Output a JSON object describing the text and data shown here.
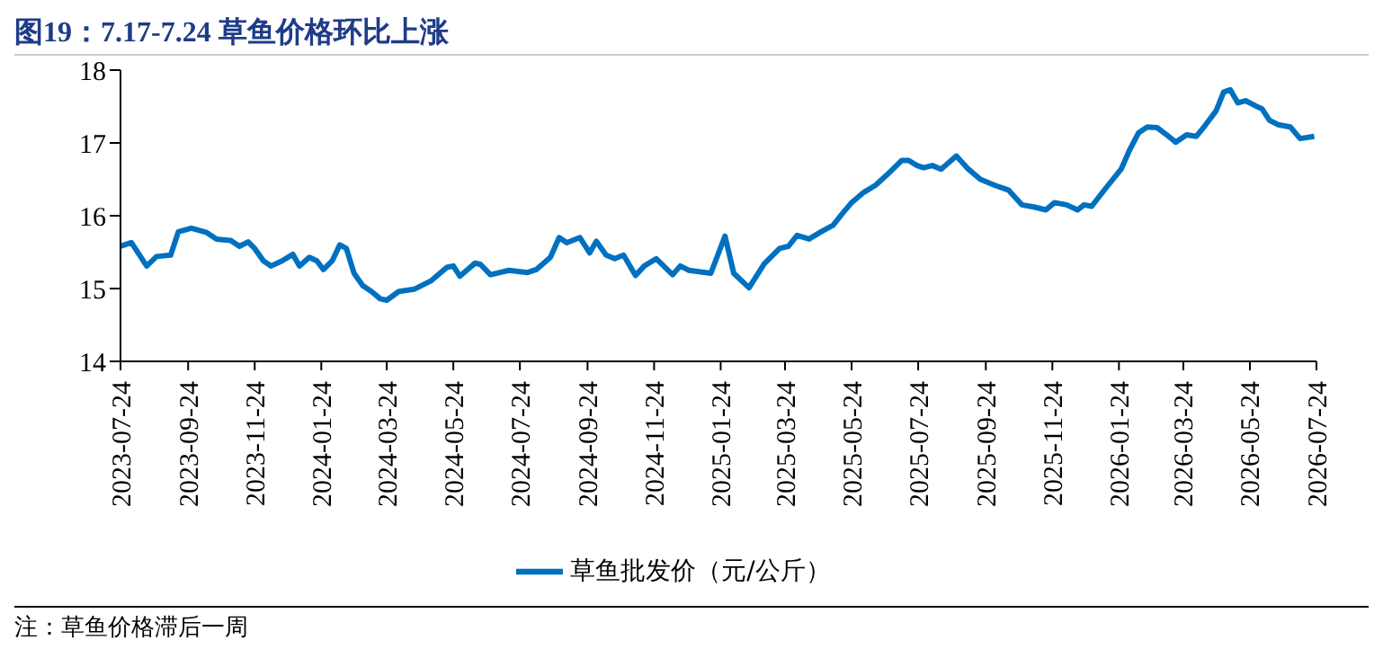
{
  "chart_data": {
    "type": "line",
    "title": "图19：7.17-7.24 草鱼价格环比上涨",
    "annotations": [
      "注：草鱼价格滞后一周"
    ],
    "x": [
      "2023-07-24",
      "2023-08-03",
      "2023-08-17",
      "2023-08-26",
      "2023-09-08",
      "2023-09-15",
      "2023-09-27",
      "2023-10-11",
      "2023-10-20",
      "2023-11-02",
      "2023-11-10",
      "2023-11-18",
      "2023-11-24",
      "2023-12-02",
      "2023-12-09",
      "2023-12-19",
      "2023-12-29",
      "2024-01-04",
      "2024-01-13",
      "2024-01-20",
      "2024-01-26",
      "2024-02-03",
      "2024-02-10",
      "2024-02-16",
      "2024-02-23",
      "2024-03-02",
      "2024-03-10",
      "2024-03-18",
      "2024-03-24",
      "2024-04-04",
      "2024-04-18",
      "2024-05-04",
      "2024-05-18",
      "2024-05-24",
      "2024-05-30",
      "2024-06-06",
      "2024-06-13",
      "2024-06-18",
      "2024-06-27",
      "2024-07-14",
      "2024-07-31",
      "2024-08-08",
      "2024-08-21",
      "2024-08-29",
      "2024-09-05",
      "2024-09-17",
      "2024-09-26",
      "2024-10-02",
      "2024-10-11",
      "2024-10-19",
      "2024-10-27",
      "2024-11-07",
      "2024-11-15",
      "2024-11-26",
      "2024-12-11",
      "2024-12-18",
      "2024-12-26",
      "2025-01-15",
      "2025-01-28",
      "2025-02-05",
      "2025-02-19",
      "2025-03-05",
      "2025-03-19",
      "2025-03-27",
      "2025-04-04",
      "2025-04-15",
      "2025-04-26",
      "2025-05-07",
      "2025-05-15",
      "2025-05-24",
      "2025-06-04",
      "2025-06-15",
      "2025-06-26",
      "2025-07-09",
      "2025-07-15",
      "2025-07-23",
      "2025-07-29",
      "2025-08-06",
      "2025-08-14",
      "2025-08-28",
      "2025-09-08",
      "2025-09-19",
      "2025-10-02",
      "2025-10-15",
      "2025-10-27",
      "2025-11-07",
      "2025-11-18",
      "2025-11-26",
      "2025-12-07",
      "2025-12-17",
      "2025-12-23",
      "2025-12-30",
      "2026-01-12",
      "2026-01-26",
      "2026-02-03",
      "2026-02-11",
      "2026-02-19",
      "2026-02-28",
      "2026-03-08",
      "2026-03-17",
      "2026-03-27",
      "2026-04-05",
      "2026-04-13",
      "2026-04-23",
      "2026-04-30",
      "2026-05-06",
      "2026-05-13",
      "2026-05-20",
      "2026-05-29",
      "2026-06-04",
      "2026-06-11",
      "2026-06-19",
      "2026-06-30",
      "2026-07-09",
      "2026-07-22"
    ],
    "series": [
      {
        "name": "草鱼批发价（元/公斤）",
        "color": "#0070c0",
        "values": [
          15.58,
          15.63,
          15.31,
          15.44,
          15.46,
          15.78,
          15.83,
          15.77,
          15.68,
          15.66,
          15.58,
          15.64,
          15.55,
          15.38,
          15.31,
          15.38,
          15.47,
          15.31,
          15.43,
          15.38,
          15.26,
          15.38,
          15.6,
          15.55,
          15.21,
          15.04,
          14.96,
          14.86,
          14.84,
          14.96,
          14.99,
          15.11,
          15.29,
          15.31,
          15.17,
          15.26,
          15.35,
          15.33,
          15.19,
          15.25,
          15.22,
          15.26,
          15.43,
          15.7,
          15.63,
          15.7,
          15.49,
          15.65,
          15.46,
          15.41,
          15.46,
          15.18,
          15.31,
          15.41,
          15.19,
          15.31,
          15.25,
          15.21,
          15.72,
          15.21,
          15.01,
          15.34,
          15.55,
          15.58,
          15.73,
          15.68,
          15.78,
          15.87,
          16.02,
          16.18,
          16.32,
          16.42,
          16.57,
          16.76,
          16.76,
          16.69,
          16.66,
          16.69,
          16.64,
          16.82,
          16.64,
          16.5,
          16.42,
          16.35,
          16.15,
          16.12,
          16.08,
          16.18,
          16.15,
          16.08,
          16.15,
          16.13,
          16.38,
          16.64,
          16.91,
          17.14,
          17.22,
          17.21,
          17.12,
          17.01,
          17.11,
          17.09,
          17.24,
          17.44,
          17.7,
          17.73,
          17.55,
          17.58,
          17.51,
          17.47,
          17.31,
          17.25,
          17.22,
          17.06,
          17.09
        ]
      }
    ],
    "xlim": [
      "2023-07-24",
      "2026-07-24"
    ],
    "xticks": [
      {
        "value": "2023-07-24",
        "label": "2023-07-24"
      },
      {
        "value": "2023-09-24",
        "label": "2023-09-24"
      },
      {
        "value": "2023-11-24",
        "label": "2023-11-24"
      },
      {
        "value": "2024-01-24",
        "label": "2024-01-24"
      },
      {
        "value": "2024-03-24",
        "label": "2024-03-24"
      },
      {
        "value": "2024-05-24",
        "label": "2024-05-24"
      },
      {
        "value": "2024-07-24",
        "label": "2024-07-24"
      },
      {
        "value": "2024-09-24",
        "label": "2024-09-24"
      },
      {
        "value": "2024-11-24",
        "label": "2024-11-24"
      },
      {
        "value": "2025-01-24",
        "label": "2025-01-24"
      },
      {
        "value": "2025-03-24",
        "label": "2025-03-24"
      },
      {
        "value": "2025-05-24",
        "label": "2025-05-24"
      },
      {
        "value": "2025-07-24",
        "label": "2025-07-24"
      },
      {
        "value": "2025-09-24",
        "label": "2025-09-24"
      },
      {
        "value": "2025-11-24",
        "label": "2025-11-24"
      },
      {
        "value": "2026-01-24",
        "label": "2026-01-24"
      },
      {
        "value": "2026-03-24",
        "label": "2026-03-24"
      },
      {
        "value": "2026-05-24",
        "label": "2026-05-24"
      },
      {
        "value": "2026-07-24",
        "label": "2026-07-24"
      }
    ],
    "ylim": [
      14,
      18
    ],
    "yticks": [
      14,
      15,
      16,
      17,
      18
    ],
    "grid": false,
    "legend": "bottom",
    "marker": "none",
    "line_style": "solid"
  }
}
